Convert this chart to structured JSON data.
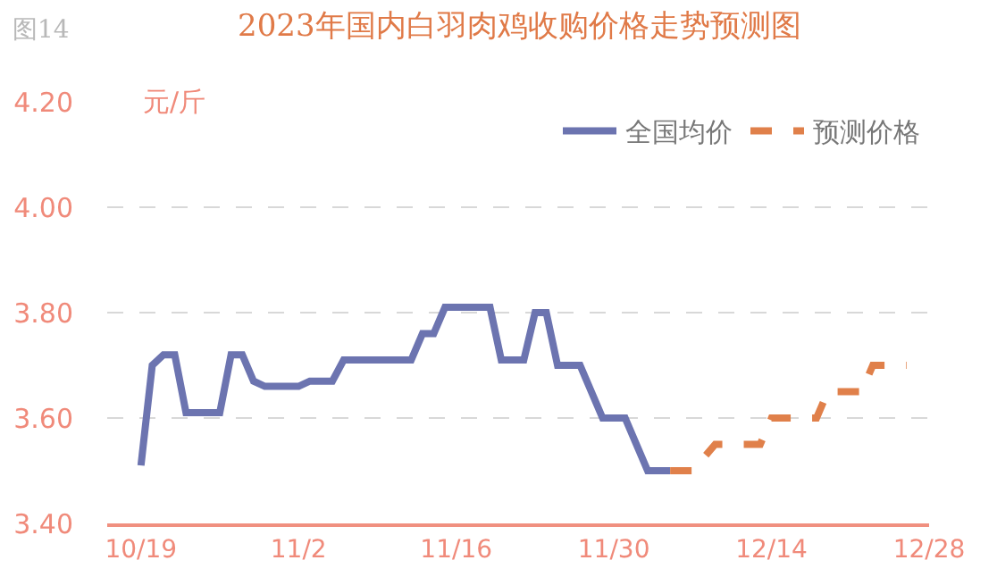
{
  "chart_data": {
    "type": "line",
    "title": "2023年国内白羽肉鸡收购价格走势预测图",
    "ylabel": "元/斤",
    "annotations": [
      "图14"
    ],
    "xlim": [
      "2023-10-16",
      "2023-12-28"
    ],
    "xticks": [
      {
        "value": "2023-10-19",
        "label": "10/19"
      },
      {
        "value": "2023-11-02",
        "label": "11/2"
      },
      {
        "value": "2023-11-16",
        "label": "11/16"
      },
      {
        "value": "2023-11-30",
        "label": "11/30"
      },
      {
        "value": "2023-12-14",
        "label": "12/14"
      },
      {
        "value": "2023-12-28",
        "label": "12/28"
      }
    ],
    "ylim": [
      3.4,
      4.2
    ],
    "yticks": [
      {
        "value": 3.4,
        "label": "3.40"
      },
      {
        "value": 3.6,
        "label": "3.60"
      },
      {
        "value": 3.8,
        "label": "3.80"
      },
      {
        "value": 4.0,
        "label": "4.00"
      },
      {
        "value": 4.2,
        "label": "4.20"
      }
    ],
    "grid": "y",
    "legend": "top right",
    "marker": "none",
    "series": [
      {
        "name": "全国均价",
        "color": "#6c74b0",
        "line_style": "solid",
        "x": [
          "2023-10-19",
          "2023-10-20",
          "2023-10-21",
          "2023-10-22",
          "2023-10-23",
          "2023-10-26",
          "2023-10-27",
          "2023-10-28",
          "2023-10-29",
          "2023-10-30",
          "2023-11-02",
          "2023-11-03",
          "2023-11-05",
          "2023-11-06",
          "2023-11-12",
          "2023-11-13",
          "2023-11-14",
          "2023-11-15",
          "2023-11-19",
          "2023-11-20",
          "2023-11-22",
          "2023-11-23",
          "2023-11-24",
          "2023-11-25",
          "2023-11-27",
          "2023-11-29",
          "2023-12-01",
          "2023-12-03",
          "2023-12-05"
        ],
        "values": [
          3.51,
          3.7,
          3.72,
          3.72,
          3.61,
          3.61,
          3.72,
          3.72,
          3.67,
          3.66,
          3.66,
          3.67,
          3.67,
          3.71,
          3.71,
          3.76,
          3.76,
          3.81,
          3.81,
          3.71,
          3.71,
          3.8,
          3.8,
          3.7,
          3.7,
          3.6,
          3.6,
          3.5,
          3.5
        ]
      },
      {
        "name": "预测价格",
        "color": "#e0804a",
        "line_style": "dashed",
        "x": [
          "2023-12-05",
          "2023-12-07",
          "2023-12-09",
          "2023-12-13",
          "2023-12-14",
          "2023-12-18",
          "2023-12-19",
          "2023-12-22",
          "2023-12-23",
          "2023-12-26"
        ],
        "values": [
          3.5,
          3.5,
          3.55,
          3.55,
          3.6,
          3.6,
          3.65,
          3.65,
          3.7,
          3.7
        ]
      }
    ]
  }
}
